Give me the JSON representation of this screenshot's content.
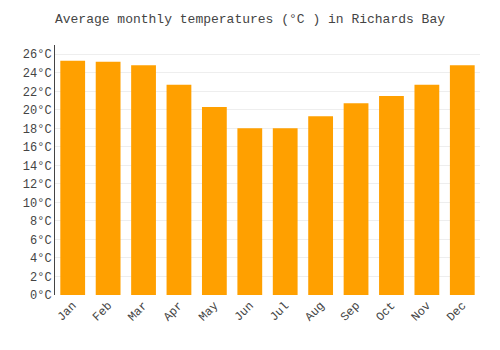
{
  "chart_data": {
    "type": "bar",
    "title": "Average monthly temperatures (°C ) in Richards Bay",
    "categories": [
      "Jan",
      "Feb",
      "Mar",
      "Apr",
      "May",
      "Jun",
      "Jul",
      "Aug",
      "Sep",
      "Oct",
      "Nov",
      "Dec"
    ],
    "values": [
      25.3,
      25.2,
      24.8,
      22.7,
      20.3,
      18.0,
      18.0,
      19.3,
      20.7,
      21.5,
      22.7,
      24.8
    ],
    "color": "#FFA000",
    "ylim": [
      0,
      27
    ],
    "yticks": [
      {
        "value": 0,
        "label": "0°C"
      },
      {
        "value": 2,
        "label": "2°C"
      },
      {
        "value": 4,
        "label": "4°C"
      },
      {
        "value": 6,
        "label": "6°C"
      },
      {
        "value": 8,
        "label": "8°C"
      },
      {
        "value": 10,
        "label": "10°C"
      },
      {
        "value": 12,
        "label": "12°C"
      },
      {
        "value": 14,
        "label": "14°C"
      },
      {
        "value": 16,
        "label": "16°C"
      },
      {
        "value": 18,
        "label": "18°C"
      },
      {
        "value": 20,
        "label": "20°C"
      },
      {
        "value": 22,
        "label": "22°C"
      },
      {
        "value": 24,
        "label": "24°C"
      },
      {
        "value": 26,
        "label": "26°C"
      }
    ],
    "grid": true
  }
}
